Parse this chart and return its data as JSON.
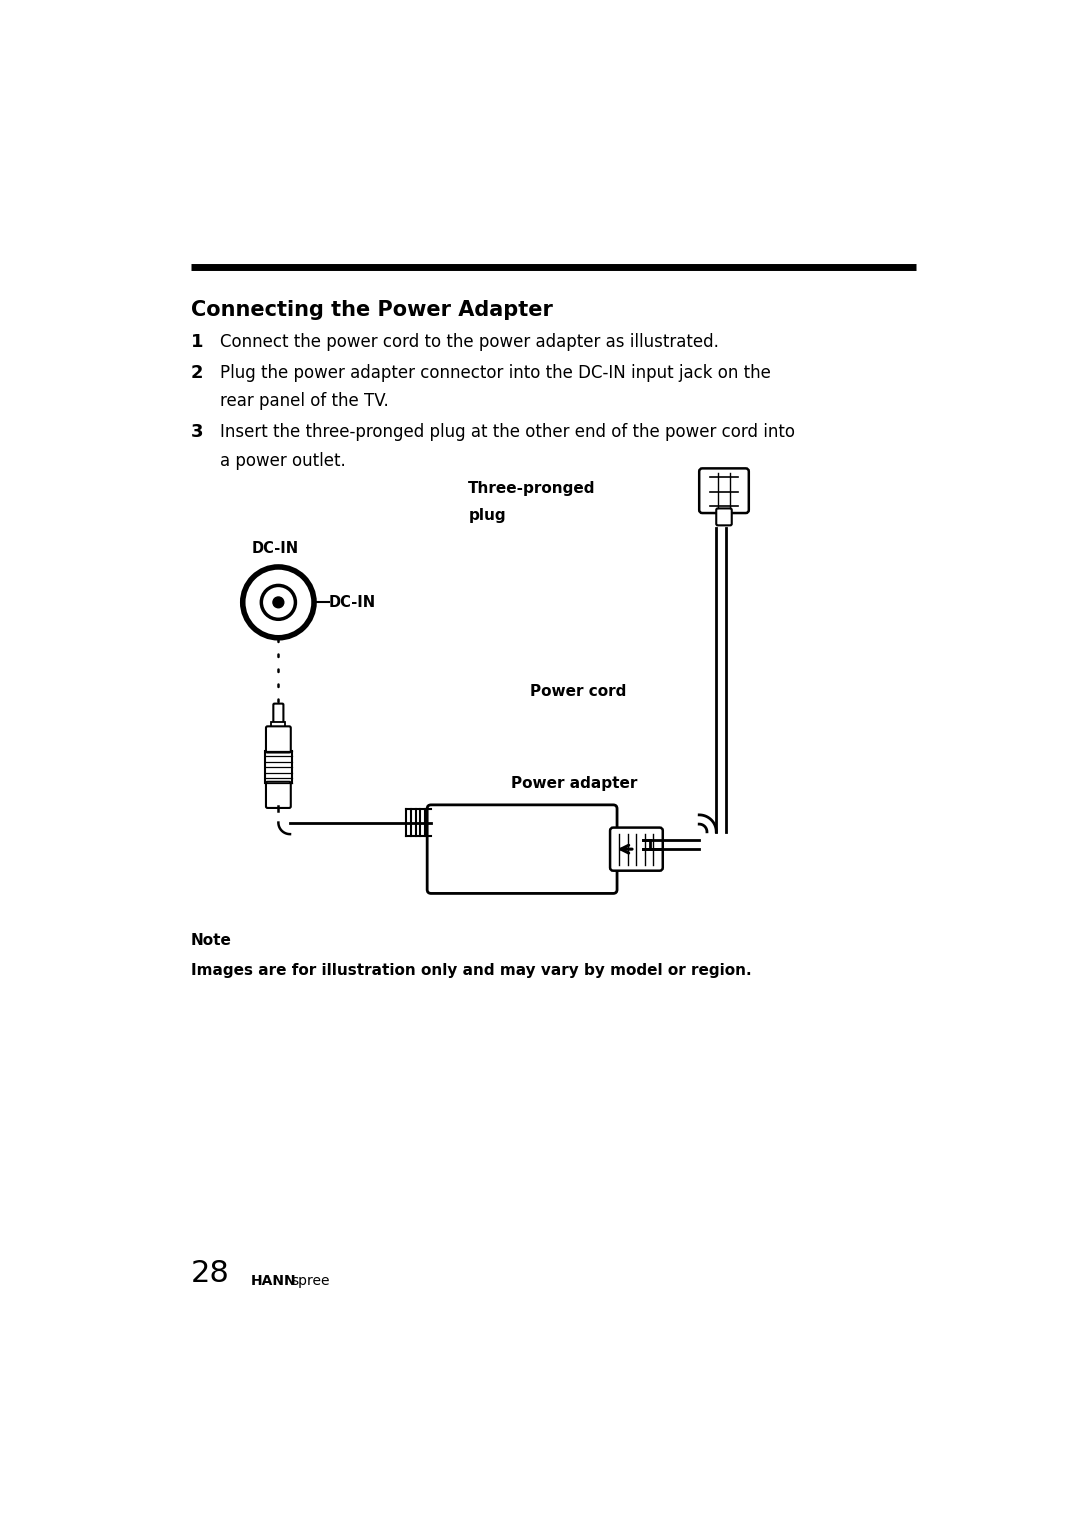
{
  "bg_color": "#ffffff",
  "title": "Connecting the Power Adapter",
  "step1": "Connect the power cord to the power adapter as illustrated.",
  "step2_line1": "Plug the power adapter connector into the DC-IN input jack on the",
  "step2_line2": "rear panel of the TV.",
  "step3_line1": "Insert the three-pronged plug at the other end of the power cord into",
  "step3_line2": "a power outlet.",
  "label_three_pronged_line1": "Three-pronged",
  "label_three_pronged_line2": "plug",
  "label_dc_in_top": "DC-IN",
  "label_dc_in_right": "DC-IN",
  "label_power_cord": "Power cord",
  "label_power_adapter": "Power adapter",
  "note_title": "Note",
  "note_text": "Images are for illustration only and may vary by model or region.",
  "page_num": "28",
  "brand_hann": "HANN",
  "brand_spree": "spree"
}
